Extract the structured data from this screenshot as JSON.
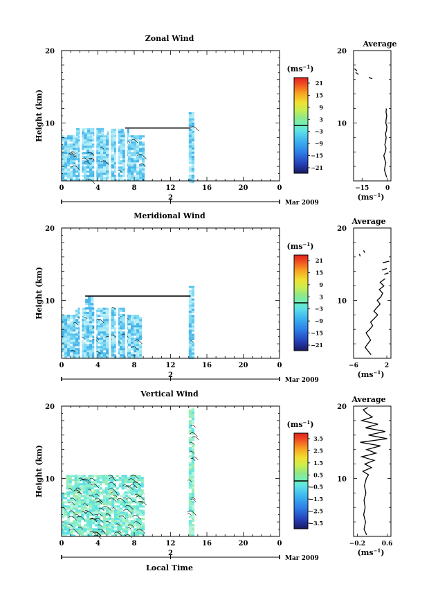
{
  "chart_data": [
    {
      "type": "heatmap",
      "title": "Zonal Wind",
      "xlabel": "",
      "ylabel": "Height (km)",
      "xlim": [
        0,
        24
      ],
      "ylim": [
        2,
        20
      ],
      "xticks": [
        "0",
        "4",
        "8",
        "12",
        "16",
        "20",
        "0"
      ],
      "yticks": [
        "10",
        "20"
      ],
      "date_marker": "2",
      "date_label": "Mar 2009",
      "colorbar": {
        "unit": "(ms",
        "exp": "−1",
        "labels": [
          "21",
          "15",
          "9",
          "3",
          "−3",
          "−9",
          "−15",
          "−21"
        ],
        "zero_line": 0
      },
      "data_blocks": [
        {
          "t0": 0.0,
          "t1": 9.0,
          "h0": 2.0,
          "h1": 8.3
        },
        {
          "t0": 1.6,
          "t1": 4.5,
          "h0": 8.3,
          "h1": 9.3
        },
        {
          "t0": 5.0,
          "t1": 7.2,
          "h0": 8.3,
          "h1": 9.2
        },
        {
          "t0": 14.0,
          "t1": 14.6,
          "h0": 2.0,
          "h1": 11.5
        }
      ],
      "level_line": {
        "t0": 7.0,
        "t1": 14.2,
        "h": 9.3
      },
      "profile": {
        "title": "Average",
        "unit": "(ms",
        "exp": "−1",
        "xlim": [
          -20,
          2
        ],
        "xticks": [
          "−15",
          "0"
        ],
        "yticks": [
          "10",
          "20"
        ],
        "height": [
          2.5,
          3.0,
          3.5,
          4.0,
          4.5,
          5.0,
          5.5,
          6.0,
          6.5,
          7.0,
          7.5,
          8.0,
          8.5,
          9.0,
          9.5,
          10.0,
          10.5,
          11.0,
          11.5,
          12.0
        ],
        "value": [
          -0.5,
          -1.2,
          -1.8,
          -1.5,
          -1.0,
          -1.7,
          -2.2,
          -1.3,
          -0.9,
          -1.6,
          -1.1,
          -0.8,
          -1.2,
          -0.6,
          -0.4,
          -1.0,
          -0.8,
          -0.5,
          -0.9,
          -0.7
        ],
        "upper_segments": [
          [
            [
              -19.5,
              17.5
            ],
            [
              -18.0,
              17.2
            ]
          ],
          [
            [
              -18.8,
              17.0
            ],
            [
              -17.2,
              16.7
            ]
          ],
          [
            [
              -11.0,
              16.3
            ],
            [
              -9.0,
              16.1
            ]
          ]
        ]
      }
    },
    {
      "type": "heatmap",
      "title": "Meridional Wind",
      "xlabel": "",
      "ylabel": "Height (km)",
      "xlim": [
        0,
        24
      ],
      "ylim": [
        2,
        20
      ],
      "xticks": [
        "0",
        "4",
        "8",
        "12",
        "16",
        "20",
        "0"
      ],
      "yticks": [
        "10",
        "20"
      ],
      "date_marker": "2",
      "date_label": "Mar 2009",
      "colorbar": {
        "unit": "(ms",
        "exp": "−1",
        "labels": [
          "21",
          "15",
          "9",
          "3",
          "−3",
          "−9",
          "−15",
          "−21"
        ],
        "zero_line": 0
      },
      "data_blocks": [
        {
          "t0": 0.0,
          "t1": 8.8,
          "h0": 2.0,
          "h1": 8.0
        },
        {
          "t0": 1.5,
          "t1": 6.8,
          "h0": 8.0,
          "h1": 9.0
        },
        {
          "t0": 2.6,
          "t1": 3.3,
          "h0": 9.0,
          "h1": 10.5
        },
        {
          "t0": 14.0,
          "t1": 14.6,
          "h0": 2.0,
          "h1": 12.0
        }
      ],
      "level_line": {
        "t0": 2.6,
        "t1": 14.2,
        "h": 10.6
      },
      "profile": {
        "title": "Average",
        "unit": "(ms",
        "exp": "−1",
        "xlim": [
          -6,
          3
        ],
        "xticks": [
          "−6",
          "2"
        ],
        "yticks": [
          "10",
          "20"
        ],
        "height": [
          2.5,
          3.0,
          3.5,
          4.0,
          4.5,
          5.0,
          5.5,
          6.0,
          6.5,
          7.0,
          7.5,
          8.0,
          8.5,
          9.0,
          9.5,
          10.0,
          10.5,
          11.0,
          11.5,
          12.0,
          12.5,
          13.0
        ],
        "value": [
          -1.8,
          -2.5,
          -3.2,
          -2.6,
          -1.9,
          -2.4,
          -3.0,
          -2.1,
          -1.4,
          -1.9,
          -1.0,
          -0.2,
          -1.1,
          -0.4,
          0.4,
          -0.3,
          0.6,
          1.0,
          0.2,
          1.3,
          0.4,
          1.6
        ],
        "upper_segments": [
          [
            [
              -4.6,
              16.4
            ],
            [
              -4.4,
              16.1
            ]
          ],
          [
            [
              -3.6,
              16.9
            ],
            [
              -3.3,
              16.6
            ]
          ],
          [
            [
              1.0,
              15.2
            ],
            [
              2.6,
              15.4
            ]
          ],
          [
            [
              0.8,
              14.2
            ],
            [
              2.0,
              14.4
            ]
          ],
          [
            [
              1.4,
              13.6
            ],
            [
              2.4,
              13.8
            ]
          ]
        ]
      }
    },
    {
      "type": "heatmap",
      "title": "Vertical Wind",
      "xlabel": "Local Time",
      "ylabel": "Height (km)",
      "xlim": [
        0,
        24
      ],
      "ylim": [
        2,
        20
      ],
      "xticks": [
        "0",
        "4",
        "8",
        "12",
        "16",
        "20",
        "0"
      ],
      "yticks": [
        "10",
        "20"
      ],
      "date_marker": "2",
      "date_label": "Mar 2009",
      "colorbar": {
        "unit": "(ms",
        "exp": "−1",
        "labels": [
          "3.5",
          "2.5",
          "1.5",
          "0.5",
          "−0.5",
          "−1.5",
          "−2.5",
          "−3.5"
        ],
        "zero_line": 0
      },
      "data_blocks": [
        {
          "t0": 0.0,
          "t1": 9.0,
          "h0": 2.0,
          "h1": 8.0
        },
        {
          "t0": 0.5,
          "t1": 8.8,
          "h0": 8.0,
          "h1": 10.5
        },
        {
          "t0": 14.0,
          "t1": 14.6,
          "h0": 2.0,
          "h1": 19.8
        }
      ],
      "level_line": null,
      "profile": {
        "title": "Average",
        "unit": "(ms",
        "exp": "−1",
        "xlim": [
          -0.3,
          0.7
        ],
        "xticks": [
          "−0.2",
          "0.6"
        ],
        "yticks": [
          "10",
          "20"
        ],
        "height": [
          2.2,
          3.0,
          4.0,
          5.0,
          6.0,
          7.0,
          8.0,
          9.0,
          10.0,
          10.5,
          11.0,
          11.5,
          12.0,
          12.5,
          13.0,
          13.5,
          14.0,
          14.5,
          15.0,
          15.5,
          16.0,
          16.5,
          17.0,
          17.5,
          18.0,
          18.5,
          19.0,
          19.5,
          19.8
        ],
        "value": [
          0.05,
          -0.02,
          0.02,
          -0.03,
          0.01,
          -0.02,
          0.03,
          -0.01,
          0.04,
          0.1,
          -0.05,
          0.18,
          0.0,
          0.25,
          -0.08,
          0.3,
          0.05,
          0.42,
          -0.12,
          0.6,
          0.1,
          0.55,
          0.02,
          0.35,
          -0.08,
          0.2,
          0.05,
          -0.04,
          0.08
        ]
      }
    }
  ]
}
